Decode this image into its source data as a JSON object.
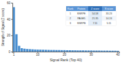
{
  "chart_data": {
    "type": "bar",
    "x_label": "Signal Rank (Top 40)",
    "y_label": "Strength of Signal (Z score)",
    "categories": [
      "1",
      null,
      null,
      null,
      null,
      null,
      null,
      null,
      null,
      "10",
      null,
      null,
      null,
      null,
      null,
      null,
      null,
      null,
      null,
      "20",
      null,
      null,
      null,
      null,
      null,
      null,
      null,
      null,
      null,
      "30",
      null,
      null,
      null,
      null,
      null,
      null,
      null,
      null,
      null,
      "40"
    ],
    "values": [
      54.58,
      21.35,
      7.11,
      4.2,
      3.6,
      3.2,
      3.0,
      2.8,
      2.6,
      2.5,
      2.4,
      2.3,
      2.2,
      2.1,
      2.0,
      2.0,
      1.9,
      1.9,
      1.8,
      1.8,
      1.7,
      1.7,
      1.6,
      1.6,
      1.5,
      1.5,
      1.5,
      1.4,
      1.4,
      1.4,
      1.3,
      1.3,
      1.3,
      1.2,
      1.2,
      1.2,
      1.1,
      1.1,
      1.1,
      1.0
    ],
    "color": "#4a8fd0",
    "ylim": [
      0,
      60
    ],
    "yticks": [
      0,
      20,
      40,
      60
    ],
    "grid": false
  },
  "table": {
    "columns": [
      "Rank",
      "Protein",
      "Z score",
      "S score"
    ],
    "rows": [
      [
        "1",
        "SNRPE",
        "54.58",
        "33.23"
      ],
      [
        "2",
        "PAGE5",
        "21.35",
        "14.24"
      ],
      [
        "3",
        "SNRPB",
        "7.11",
        "5.11"
      ]
    ]
  }
}
